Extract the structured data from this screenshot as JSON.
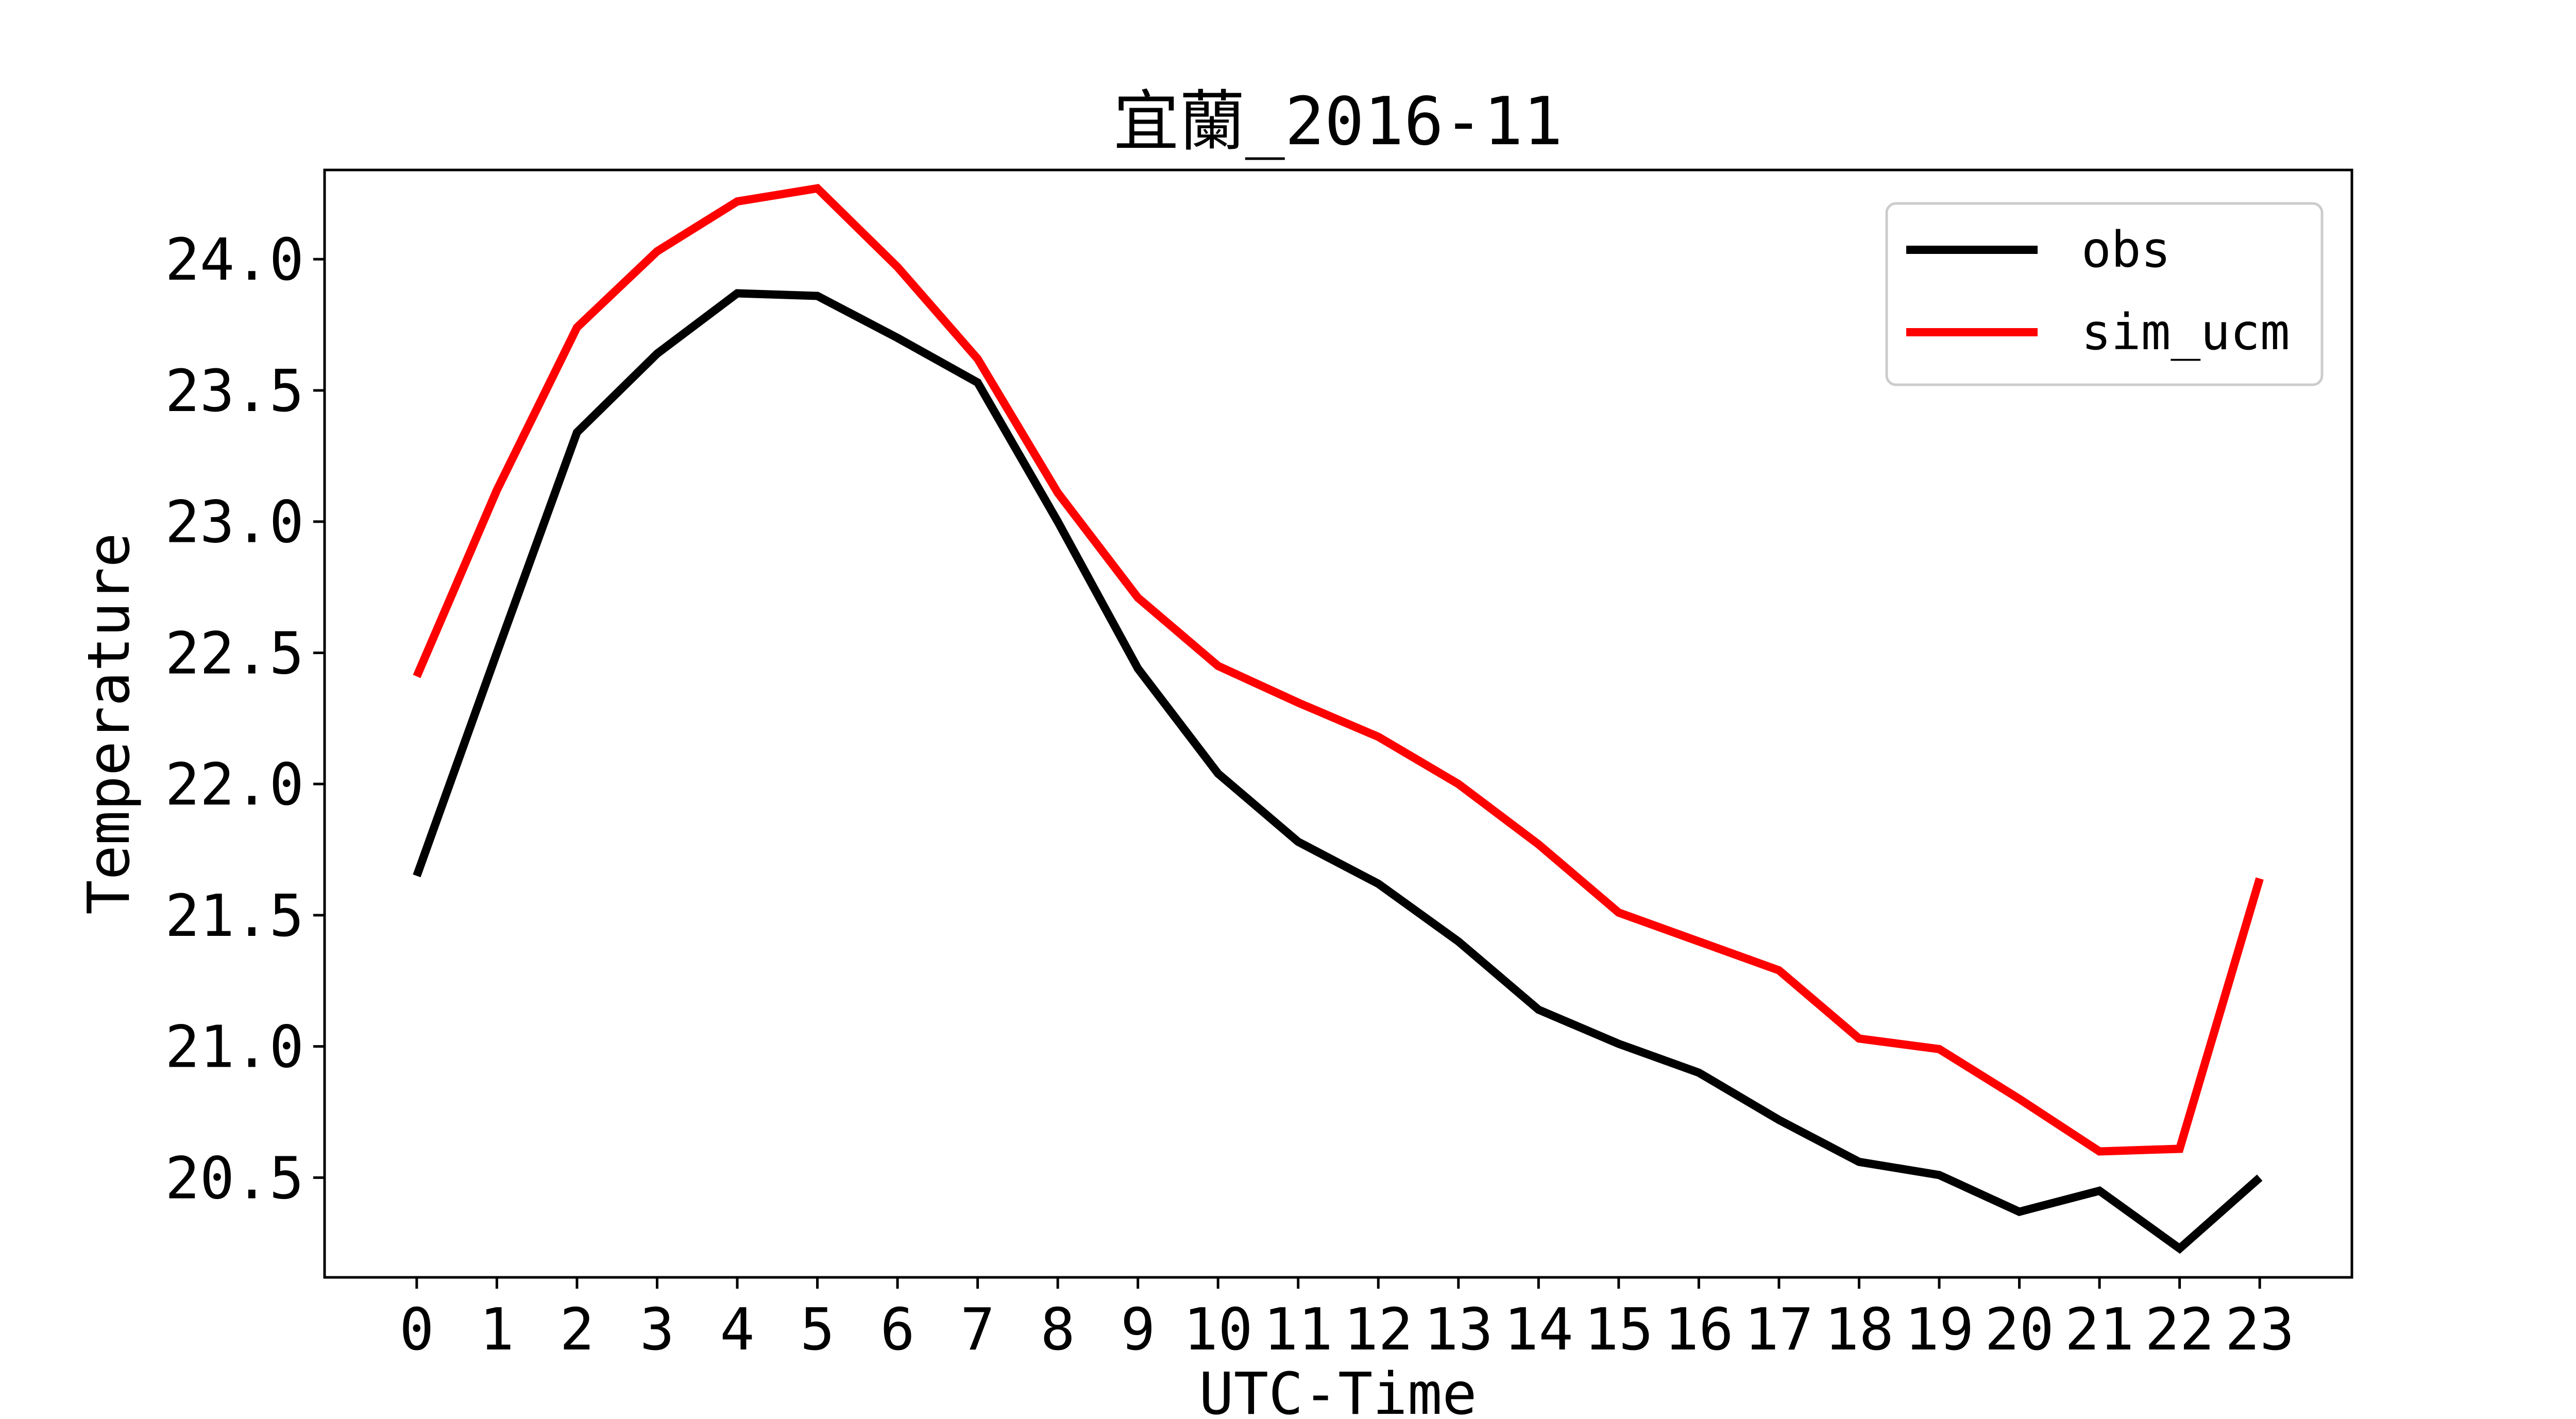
{
  "chart_data": {
    "type": "line",
    "title": "宜蘭_2016-11",
    "xlabel": "UTC-Time",
    "ylabel": "Temperature",
    "x": [
      0,
      1,
      2,
      3,
      4,
      5,
      6,
      7,
      8,
      9,
      10,
      11,
      12,
      13,
      14,
      15,
      16,
      17,
      18,
      19,
      20,
      21,
      22,
      23
    ],
    "x_tick_labels": [
      "0",
      "1",
      "2",
      "3",
      "4",
      "5",
      "6",
      "7",
      "8",
      "9",
      "10",
      "11",
      "12",
      "13",
      "14",
      "15",
      "16",
      "17",
      "18",
      "19",
      "20",
      "21",
      "22",
      "23"
    ],
    "y_ticks": [
      20.5,
      21.0,
      21.5,
      22.0,
      22.5,
      23.0,
      23.5,
      24.0
    ],
    "y_tick_labels": [
      "20.5",
      "21.0",
      "21.5",
      "22.0",
      "22.5",
      "23.0",
      "23.5",
      "24.0"
    ],
    "xlim": [
      -1.15,
      24.15
    ],
    "ylim": [
      20.12,
      24.34
    ],
    "series": [
      {
        "name": "obs",
        "color": "#000000",
        "values": [
          21.65,
          22.5,
          23.34,
          23.64,
          23.87,
          23.86,
          23.7,
          23.53,
          23.0,
          22.44,
          22.04,
          21.78,
          21.62,
          21.4,
          21.14,
          21.01,
          20.9,
          20.72,
          20.56,
          20.51,
          20.37,
          20.45,
          20.23,
          20.5
        ]
      },
      {
        "name": "sim_ucm",
        "color": "#ff0000",
        "values": [
          22.41,
          23.12,
          23.74,
          24.03,
          24.22,
          24.27,
          23.97,
          23.62,
          23.11,
          22.71,
          22.45,
          22.31,
          22.18,
          22.0,
          21.77,
          21.51,
          21.4,
          21.29,
          21.03,
          20.99,
          20.8,
          20.6,
          20.61,
          21.64
        ]
      }
    ],
    "grid": false,
    "legend_position": "top-right"
  }
}
